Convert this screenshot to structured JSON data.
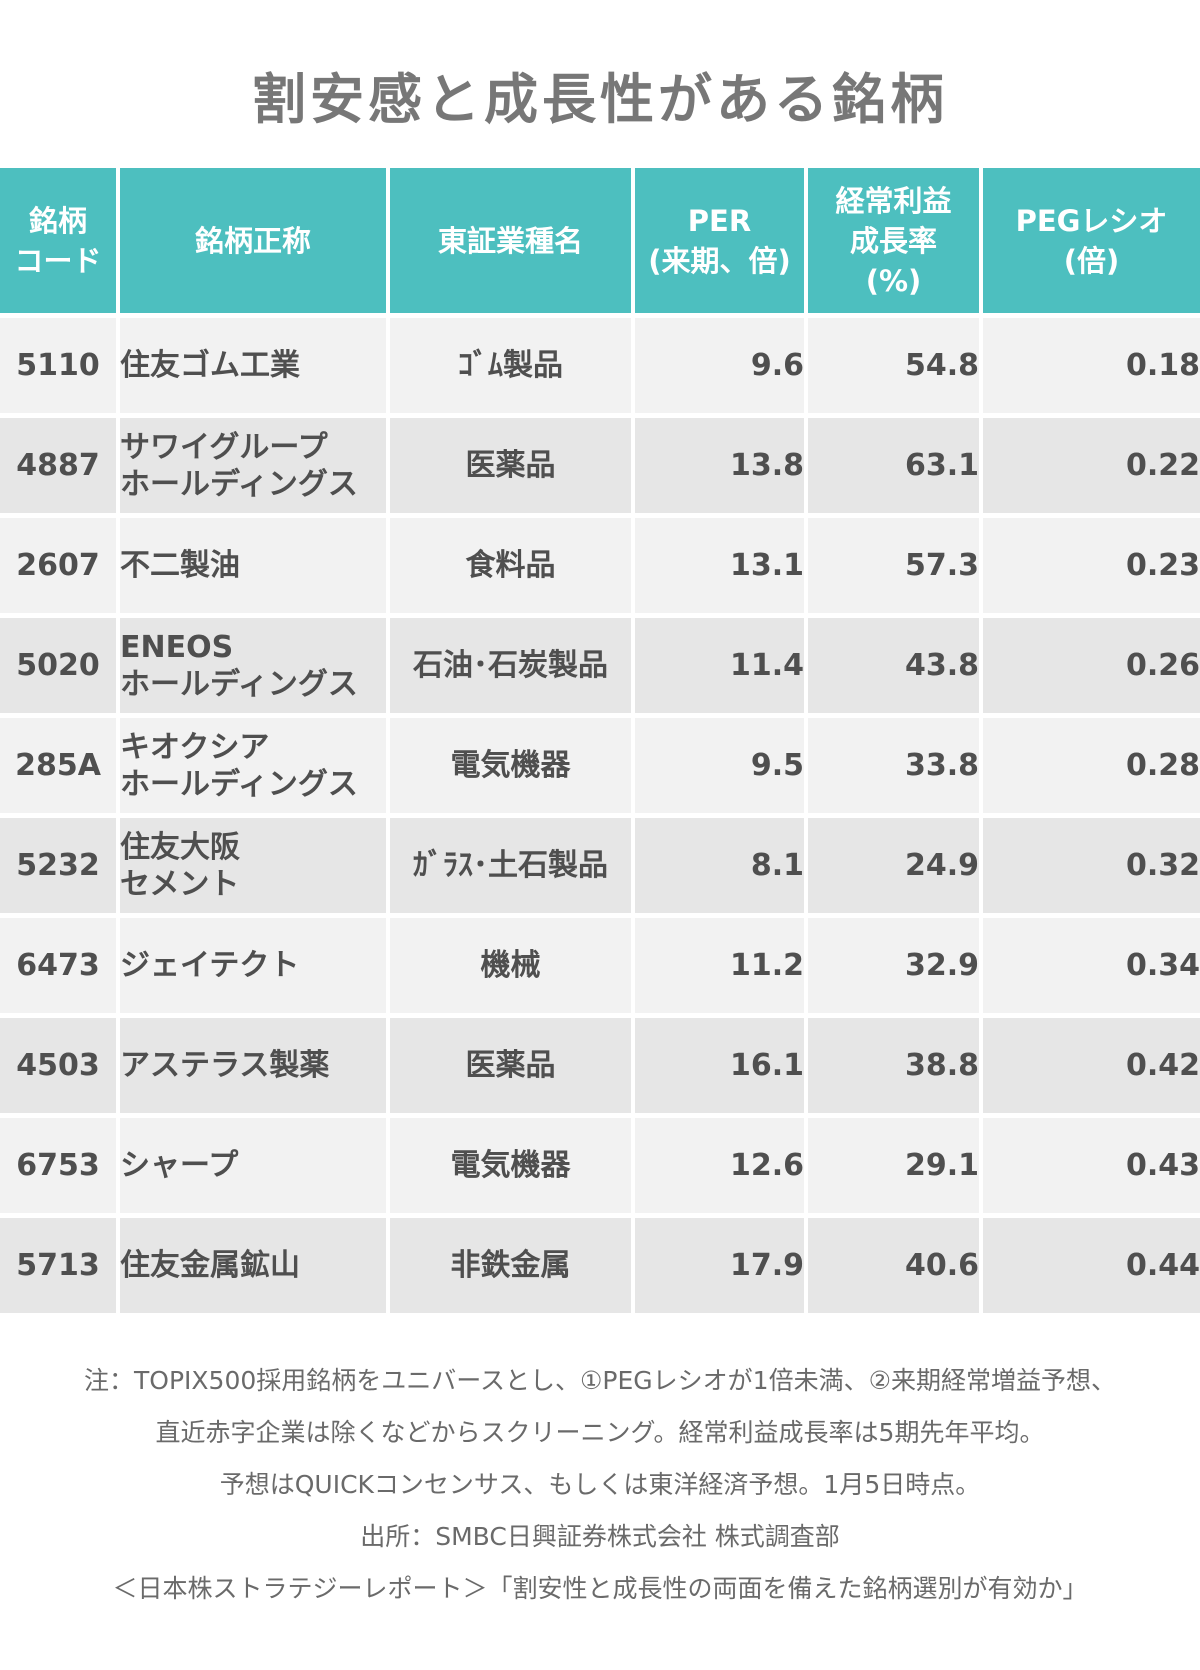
{
  "title": "割安感と成長性がある銘柄",
  "table": {
    "headers": [
      [
        "銘柄",
        "コード"
      ],
      [
        "銘柄正称"
      ],
      [
        "東証業種名"
      ],
      [
        "PER",
        "(来期、倍)"
      ],
      [
        "経常利益",
        "成長率",
        "(%)"
      ],
      [
        "PEGレシオ",
        "(倍)"
      ]
    ],
    "rows": [
      {
        "code": "5110",
        "name": [
          "住友ゴム工業"
        ],
        "sector": "ｺﾞﾑ製品",
        "per": "9.6",
        "growth": "54.8",
        "peg": "0.18"
      },
      {
        "code": "4887",
        "name": [
          "サワイグループ",
          "ホールディングス"
        ],
        "sector": "医薬品",
        "per": "13.8",
        "growth": "63.1",
        "peg": "0.22"
      },
      {
        "code": "2607",
        "name": [
          "不二製油"
        ],
        "sector": "食料品",
        "per": "13.1",
        "growth": "57.3",
        "peg": "0.23"
      },
      {
        "code": "5020",
        "name": [
          "ENEOS",
          "ホールディングス"
        ],
        "sector": "石油･石炭製品",
        "per": "11.4",
        "growth": "43.8",
        "peg": "0.26"
      },
      {
        "code": "285A",
        "name": [
          "キオクシア",
          "ホールディングス"
        ],
        "sector": "電気機器",
        "per": "9.5",
        "growth": "33.8",
        "peg": "0.28"
      },
      {
        "code": "5232",
        "name": [
          "住友大阪",
          "セメント"
        ],
        "sector": "ｶﾞﾗｽ･土石製品",
        "per": "8.1",
        "growth": "24.9",
        "peg": "0.32"
      },
      {
        "code": "6473",
        "name": [
          "ジェイテクト"
        ],
        "sector": "機械",
        "per": "11.2",
        "growth": "32.9",
        "peg": "0.34"
      },
      {
        "code": "4503",
        "name": [
          "アステラス製薬"
        ],
        "sector": "医薬品",
        "per": "16.1",
        "growth": "38.8",
        "peg": "0.42"
      },
      {
        "code": "6753",
        "name": [
          "シャープ"
        ],
        "sector": "電気機器",
        "per": "12.6",
        "growth": "29.1",
        "peg": "0.43"
      },
      {
        "code": "5713",
        "name": [
          "住友金属鉱山"
        ],
        "sector": "非鉄金属",
        "per": "17.9",
        "growth": "40.6",
        "peg": "0.44"
      }
    ]
  },
  "notes": [
    "注：TOPIX500採用銘柄をユニバースとし、①PEGレシオが1倍未満、②来期経常増益予想、",
    "直近赤字企業は除くなどからスクリーニング。経常利益成長率は5期先年平均。",
    "予想はQUICKコンセンサス、もしくは東洋経済予想。1月5日時点。",
    "出所：SMBC日興証券株式会社 株式調査部",
    "＜日本株ストラテジーレポート＞「割安性と成長性の両面を備えた銘柄選別が有効か」"
  ]
}
